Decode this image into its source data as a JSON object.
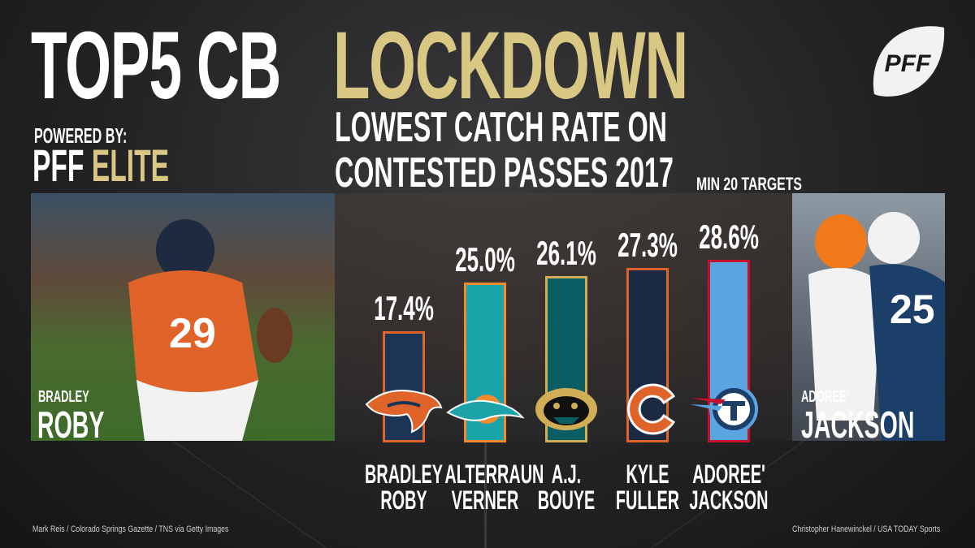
{
  "headline": {
    "left": "TOP5 CB",
    "right": "LOCKDOWN"
  },
  "subtitle": {
    "line1": "LOWEST CATCH RATE ON",
    "line2": "CONTESTED PASSES 2017",
    "note": "MIN 20 TARGETS"
  },
  "powered": {
    "by": "POWERED BY:",
    "brand": "PFF",
    "tier": "ELITE"
  },
  "logo": {
    "text": "PFF"
  },
  "photos": {
    "left": {
      "first": "BRADLEY",
      "last": "ROBY"
    },
    "right": {
      "first": "ADOREE'",
      "last": "JACKSON"
    }
  },
  "credits": {
    "left": "Mark Reis / Colorado Springs Gazette / TNS via Getty Images",
    "right": "Christopher Hanewinckel / USA TODAY Sports"
  },
  "colors": {
    "gold": "#d9c784"
  },
  "chart_data": {
    "type": "bar",
    "title": "LOWEST CATCH RATE ON CONTESTED PASSES 2017",
    "note": "MIN 20 TARGETS",
    "unit": "%",
    "ylim": [
      0,
      35
    ],
    "categories": [
      {
        "first": "BRADLEY",
        "last": "ROBY",
        "team": "broncos-logo"
      },
      {
        "first": "ALTERRAUN",
        "last": "VERNER",
        "team": "dolphins-logo"
      },
      {
        "first": "A.J.",
        "last": "BOUYE",
        "team": "jaguars-logo"
      },
      {
        "first": "KYLE",
        "last": "FULLER",
        "team": "bears-logo"
      },
      {
        "first": "ADOREE'",
        "last": "JACKSON",
        "team": "titans-logo"
      }
    ],
    "values": [
      17.4,
      25.0,
      26.1,
      27.3,
      28.6
    ],
    "labels": [
      "17.4%",
      "25.0%",
      "26.1%",
      "27.3%",
      "28.6%"
    ],
    "bar_colors": [
      {
        "fill": "#1b3557",
        "stroke": "#e0632a"
      },
      {
        "fill": "#1aa3a8",
        "stroke": "#f28a2e"
      },
      {
        "fill": "#0a5e63",
        "stroke": "#cfae56"
      },
      {
        "fill": "#1b2a42",
        "stroke": "#e0632a"
      },
      {
        "fill": "#5aa4e0",
        "stroke": "#c8102e"
      }
    ]
  }
}
